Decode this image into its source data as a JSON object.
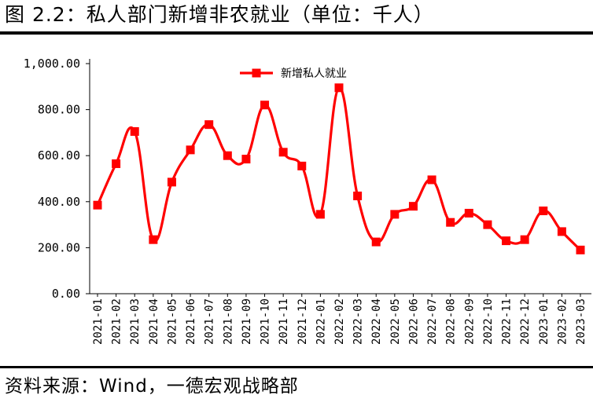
{
  "figure": {
    "title": "图 2.2：私人部门新增非农就业（单位：千人）",
    "source": "资料来源：Wind，一德宏观战略部"
  },
  "chart_data": {
    "type": "line",
    "categories": [
      "2021-01",
      "2021-02",
      "2021-03",
      "2021-04",
      "2021-05",
      "2021-06",
      "2021-07",
      "2021-08",
      "2021-09",
      "2021-10",
      "2021-11",
      "2021-12",
      "2022-01",
      "2022-02",
      "2022-03",
      "2022-04",
      "2022-05",
      "2022-06",
      "2022-07",
      "2022-08",
      "2022-09",
      "2022-10",
      "2022-11",
      "2022-12",
      "2023-01",
      "2023-02",
      "2023-03"
    ],
    "series": [
      {
        "name": "新增私人就业",
        "color": "#ff0000",
        "marker": "square",
        "smooth": true,
        "values": [
          385,
          565,
          705,
          235,
          485,
          625,
          735,
          600,
          585,
          820,
          615,
          555,
          345,
          895,
          425,
          225,
          345,
          380,
          495,
          310,
          350,
          300,
          230,
          235,
          360,
          270,
          190
        ]
      }
    ],
    "ylim": [
      0,
      1000
    ],
    "yticks": [
      0,
      200,
      400,
      600,
      800,
      1000
    ],
    "ytick_labels": [
      "0.00",
      "200.00",
      "400.00",
      "600.00",
      "800.00",
      "1,000.00"
    ],
    "legend_position": "top-center",
    "grid": false,
    "xlabel": "",
    "ylabel": ""
  }
}
